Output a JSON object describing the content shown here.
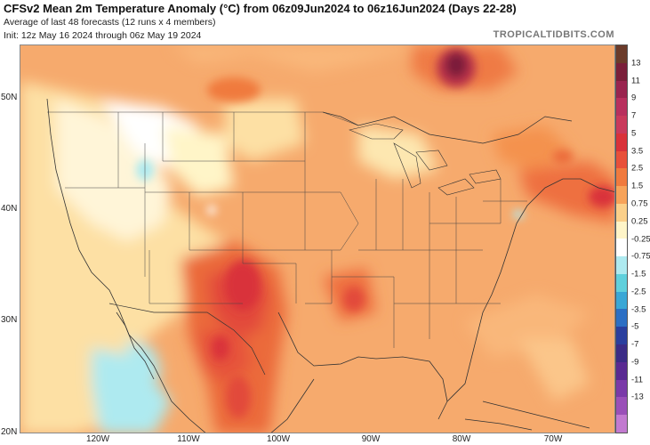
{
  "header": {
    "title": "CFSv2 Mean 2m Temperature Anomaly (°C) from 06z09Jun2024 to 06z16Jun2024 (Days 22-28)",
    "subtitle1": "Average of last 48 forecasts (12 runs x 4 members)",
    "subtitle2": "Init: 12z May 16 2024 through 06z May 19 2024",
    "brand": "TROPICALTIDBITS.COM"
  },
  "axes": {
    "lat_labels": [
      "50N",
      "40N",
      "30N",
      "20N"
    ],
    "lon_labels": [
      "120W",
      "110W",
      "100W",
      "90W",
      "80W",
      "70W"
    ]
  },
  "colorbar": {
    "labels": [
      "13",
      "11",
      "9",
      "7",
      "5",
      "3.5",
      "2.5",
      "1.5",
      "0.75",
      "0.25",
      "-0.25",
      "-0.75",
      "-1.5",
      "-2.5",
      "-3.5",
      "-5",
      "-7",
      "-9",
      "-11",
      "-13"
    ],
    "colors": [
      "#6b3b2a",
      "#7a1f3a",
      "#99244f",
      "#b8305e",
      "#c93a5c",
      "#d9323a",
      "#e8503a",
      "#f07a3e",
      "#f7a35a",
      "#fbd08a",
      "#fff5c8",
      "#ffffff",
      "#aeeaf0",
      "#5fd0dc",
      "#3aa7d6",
      "#2c6fc4",
      "#2a3f9e",
      "#3b2c86",
      "#5a2a92",
      "#7a3aa8",
      "#9a50b8",
      "#c27ad0"
    ]
  },
  "colors": {
    "light_warm": "#fde0a4",
    "warm": "#f9b77a",
    "orange": "#f4924e",
    "red_orange": "#eb6a3a",
    "red": "#d9323a",
    "dark_red": "#9a1b2e",
    "cool": "#aeeaf0",
    "neutral": "#ffffff"
  }
}
